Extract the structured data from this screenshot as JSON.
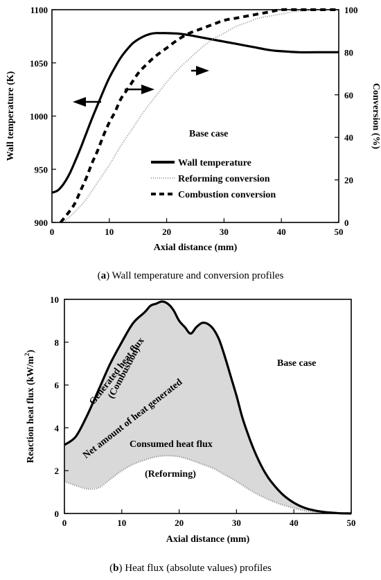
{
  "chart_data": [
    {
      "type": "line",
      "xlabel": "Axial distance (mm)",
      "ylabel": "Wall temperature (K)",
      "y2label": "Conversion (%)",
      "xlim": [
        0,
        50
      ],
      "ylim": [
        900,
        1100
      ],
      "y2lim": [
        0,
        100
      ],
      "xticks": [
        "0",
        "10",
        "20",
        "30",
        "40",
        "50"
      ],
      "yticks": [
        "900",
        "950",
        "1000",
        "1050",
        "1100"
      ],
      "y2ticks": [
        "0",
        "20",
        "40",
        "60",
        "80",
        "100"
      ],
      "annotation": "Base case",
      "legend_position": "center",
      "caption_label": "a",
      "caption_text": " Wall temperature and conversion profiles",
      "series": [
        {
          "name": "Wall temperature",
          "axis": "left",
          "style": "solid",
          "x": [
            0,
            1,
            2,
            3,
            4,
            5,
            6,
            7,
            8,
            9,
            10,
            11,
            12,
            13,
            14,
            15,
            16,
            17,
            18,
            19,
            20,
            22,
            24,
            26,
            28,
            30,
            32,
            35,
            38,
            40,
            43,
            46,
            50
          ],
          "y": [
            928,
            930,
            936,
            945,
            957,
            970,
            984,
            998,
            1011,
            1024,
            1036,
            1046,
            1055,
            1062,
            1068,
            1072,
            1075,
            1077,
            1078,
            1078,
            1078,
            1077.5,
            1076,
            1074,
            1072,
            1070,
            1068,
            1065,
            1062,
            1061,
            1060,
            1060,
            1060
          ]
        },
        {
          "name": "Reforming conversion",
          "axis": "right",
          "style": "dotted",
          "x": [
            2,
            4,
            6,
            8,
            10,
            12,
            14,
            16,
            18,
            20,
            22,
            24,
            26,
            28,
            30,
            32,
            34,
            36,
            38,
            40,
            42,
            44,
            46,
            48,
            50
          ],
          "y": [
            0,
            5,
            11,
            19,
            27,
            36,
            44,
            52,
            59,
            66,
            72,
            77,
            82,
            86,
            89,
            92,
            94,
            96,
            97,
            98,
            99,
            99.5,
            100,
            100,
            100
          ]
        },
        {
          "name": "Combustion conversion",
          "axis": "right",
          "style": "dashed",
          "x": [
            1.5,
            3,
            4,
            5,
            6,
            7,
            8,
            9,
            10,
            11,
            12,
            13,
            14,
            15,
            16,
            18,
            20,
            22,
            24,
            26,
            28,
            30,
            32,
            34,
            36,
            38,
            40,
            43,
            46,
            50
          ],
          "y": [
            0,
            5,
            9,
            15,
            21,
            28,
            34,
            41,
            47,
            52,
            58,
            62,
            66,
            70,
            73,
            78,
            82,
            86,
            89,
            91,
            93,
            95,
            96,
            97,
            98,
            99,
            100,
            100,
            100,
            100
          ]
        }
      ]
    },
    {
      "type": "area",
      "xlabel": "Axial distance (mm)",
      "ylabel_main": "Reaction heat flux (kW/m",
      "ylabel_sup": "2",
      "ylabel_end": ")",
      "xlim": [
        0,
        50
      ],
      "ylim": [
        0,
        10
      ],
      "xticks": [
        "0",
        "10",
        "20",
        "30",
        "40",
        "50"
      ],
      "yticks": [
        "0",
        "2",
        "4",
        "6",
        "8",
        "10"
      ],
      "annotation_case": "Base case",
      "annotation_generated_1": "Generated heat flux",
      "annotation_generated_2": "(Combustion)",
      "annotation_net": "Net amount of heat generated",
      "annotation_consumed_1": "Consumed heat flux",
      "annotation_consumed_2": "(Reforming)",
      "caption_label": "b",
      "caption_text": " Heat flux (absolute values) profiles",
      "series": [
        {
          "name": "Generated heat flux",
          "style": "solid",
          "x": [
            0,
            2,
            4,
            6,
            8,
            10,
            12,
            14,
            15,
            16,
            17,
            18,
            19,
            20,
            21,
            22,
            23,
            24,
            25,
            26,
            27,
            28,
            29,
            30,
            31,
            32,
            33,
            34,
            35,
            36,
            38,
            40,
            42,
            44,
            46,
            48,
            50
          ],
          "y": [
            3.2,
            3.6,
            4.6,
            5.8,
            7.0,
            8.0,
            8.9,
            9.4,
            9.7,
            9.8,
            9.9,
            9.8,
            9.5,
            9.0,
            8.7,
            8.4,
            8.7,
            8.9,
            8.85,
            8.6,
            8.1,
            7.3,
            6.4,
            5.5,
            4.5,
            3.7,
            3.0,
            2.4,
            1.9,
            1.5,
            0.9,
            0.5,
            0.25,
            0.12,
            0.05,
            0.01,
            0
          ]
        },
        {
          "name": "Consumed heat flux",
          "style": "dotted",
          "x": [
            0,
            2,
            4,
            6,
            8,
            10,
            12,
            14,
            16,
            18,
            20,
            22,
            24,
            26,
            28,
            30,
            32,
            34,
            36,
            38,
            40,
            42,
            44,
            46,
            48,
            50
          ],
          "y": [
            1.5,
            1.3,
            1.15,
            1.2,
            1.6,
            2.0,
            2.3,
            2.5,
            2.65,
            2.7,
            2.65,
            2.5,
            2.3,
            2.1,
            1.8,
            1.5,
            1.15,
            0.85,
            0.6,
            0.4,
            0.25,
            0.12,
            0.05,
            0.02,
            0,
            0
          ]
        }
      ]
    }
  ]
}
